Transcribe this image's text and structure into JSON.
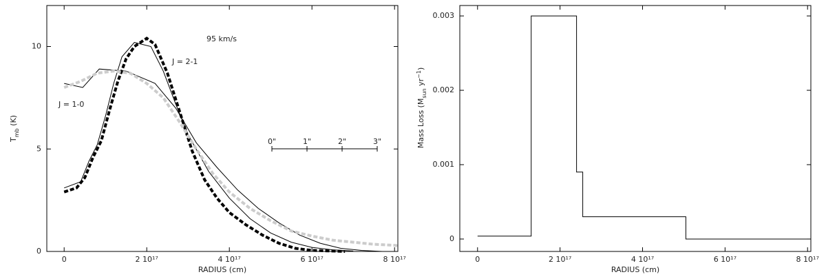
{
  "chart_data": [
    {
      "type": "line",
      "xlabel": "RADIUS (cm)",
      "ylabel_parts": [
        "T",
        "mb",
        " (K)"
      ],
      "xlim": [
        -4.2e+16,
        8.08e+17
      ],
      "ylim": [
        0,
        12
      ],
      "xticks": [
        0,
        {
          "value": 2e+17,
          "label": "2 10¹⁷"
        },
        {
          "value": 4e+17,
          "label": "4 10¹⁷"
        },
        {
          "value": 6e+17,
          "label": "6 10¹⁷"
        },
        {
          "value": 8e+17,
          "label": "8 10¹⁷"
        }
      ],
      "yticks": [
        0,
        5,
        10
      ],
      "annotations": [
        "95 km/s",
        "J = 2-1",
        "J = 1-0"
      ],
      "scale_bar": [
        "0\"",
        "1\"",
        "2\"",
        "3\""
      ],
      "series": [
        {
          "color": "#000000",
          "style": "thin",
          "x": [
            0,
            4e+16,
            6e+16,
            8e+16,
            1e+17,
            1.2e+17,
            1.4e+17,
            1.7e+17,
            2.1e+17,
            2.4e+17,
            2.7e+17,
            3e+17,
            3.5e+17,
            4e+17,
            4.5e+17,
            5e+17,
            5.5e+17,
            6e+17,
            6.5e+17,
            7e+17
          ],
          "values": [
            3.1,
            3.4,
            4.4,
            5.2,
            6.6,
            8.2,
            9.5,
            10.2,
            10.0,
            8.8,
            7.2,
            5.7,
            3.9,
            2.6,
            1.6,
            0.9,
            0.45,
            0.2,
            0.08,
            0.02
          ]
        },
        {
          "color": "#000000",
          "style": "dashed",
          "x": [
            0,
            3e+16,
            5e+16,
            7e+16,
            9e+16,
            1.1e+17,
            1.3e+17,
            1.5e+17,
            1.7e+17,
            2e+17,
            2.2e+17,
            2.5e+17,
            2.8e+17,
            3.1e+17,
            3.4e+17,
            3.7e+17,
            4e+17,
            4.4e+17,
            4.8e+17,
            5.2e+17,
            5.6e+17,
            6e+17,
            6.5e+17,
            6.8e+17
          ],
          "values": [
            2.9,
            3.1,
            3.6,
            4.6,
            5.4,
            6.9,
            8.3,
            9.4,
            10.0,
            10.4,
            10.1,
            8.7,
            6.8,
            4.9,
            3.5,
            2.6,
            1.9,
            1.3,
            0.8,
            0.4,
            0.15,
            0.05,
            0.02,
            0
          ]
        },
        {
          "color": "#000000",
          "style": "thin",
          "x": [
            0,
            4.5e+16,
            8.5e+16,
            1.5e+17,
            2.2e+17,
            2.7e+17,
            3.2e+17,
            3.7e+17,
            4.2e+17,
            4.7e+17,
            5.2e+17,
            5.7e+17,
            6.2e+17,
            6.7e+17,
            7.2e+17,
            7.7e+17
          ],
          "values": [
            8.2,
            8.0,
            8.9,
            8.8,
            8.2,
            7.0,
            5.3,
            4.1,
            3.0,
            2.1,
            1.4,
            0.8,
            0.4,
            0.15,
            0.05,
            0
          ]
        },
        {
          "color": "#cccccc",
          "style": "dashed",
          "x": [
            0,
            4e+16,
            8e+16,
            1.2e+17,
            1.6e+17,
            2e+17,
            2.4e+17,
            2.8e+17,
            3.2e+17,
            3.6e+17,
            4e+17,
            4.5e+17,
            5e+17,
            5.5e+17,
            6e+17,
            6.5e+17,
            7e+17,
            7.5e+17,
            8e+17,
            8.08e+17
          ],
          "values": [
            8.0,
            8.3,
            8.7,
            8.8,
            8.7,
            8.2,
            7.5,
            6.3,
            5.0,
            3.8,
            2.9,
            2.1,
            1.5,
            1.0,
            0.75,
            0.55,
            0.45,
            0.35,
            0.3,
            0.28
          ]
        }
      ]
    },
    {
      "type": "line",
      "xlabel": "RADIUS (cm)",
      "ylabel_parts": [
        "Mass Loss (M",
        "sun",
        " yr",
        "−1",
        ")"
      ],
      "xlim": [
        -4.3e+16,
        8.08e+17
      ],
      "ylim": [
        -0.000167,
        0.00314
      ],
      "xticks": [
        0,
        {
          "value": 2e+17,
          "label": "2 10¹⁷"
        },
        {
          "value": 4e+17,
          "label": "4 10¹⁷"
        },
        {
          "value": 6e+17,
          "label": "6 10¹⁷"
        },
        {
          "value": 8e+17,
          "label": "8 10¹⁷"
        }
      ],
      "yticks": [
        0,
        0.001,
        0.002,
        0.003
      ],
      "series": [
        {
          "color": "#000000",
          "style": "thin",
          "x": [
            0,
            1.3e+17,
            1.3e+17,
            2.4e+17,
            2.4e+17,
            2.55e+17,
            2.55e+17,
            5.05e+17,
            5.05e+17,
            8.08e+17
          ],
          "values": [
            4e-05,
            4e-05,
            0.003,
            0.003,
            0.0009,
            0.0009,
            0.0003,
            0.0003,
            0,
            0
          ]
        }
      ]
    }
  ]
}
